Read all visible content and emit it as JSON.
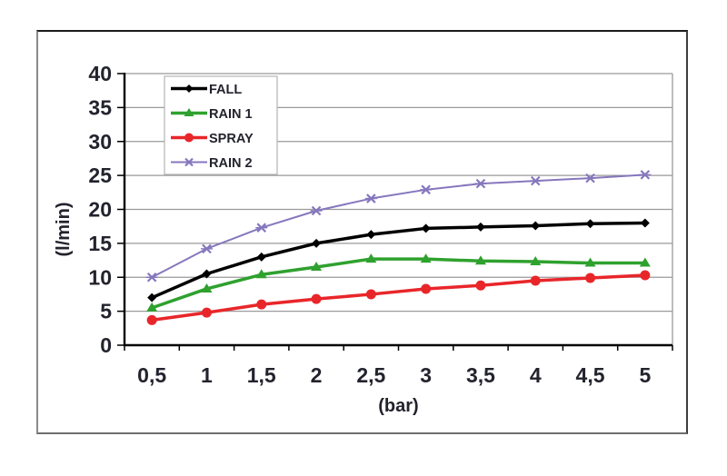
{
  "figure": {
    "background": "#ffffff",
    "border_color": "#3c3c3c"
  },
  "chart_data": {
    "type": "line",
    "xlabel": "(bar)",
    "ylabel": "(l/min)",
    "x_values": [
      0.5,
      1,
      1.5,
      2,
      2.5,
      3,
      3.5,
      4,
      4.5,
      5
    ],
    "x_tick_labels": [
      "0,5",
      "1",
      "1,5",
      "2",
      "2,5",
      "3",
      "3,5",
      "4",
      "4,5",
      "5"
    ],
    "y_tick_labels": [
      "0",
      "5",
      "10",
      "15",
      "20",
      "25",
      "30",
      "35",
      "40"
    ],
    "ylim": [
      0,
      40
    ],
    "y_tick_step": 5,
    "grid": true,
    "grid_color": "#9a9a9a",
    "axis_color": "#000000",
    "text_color": "#23232e",
    "legend_position": "top-left-inside",
    "legend_border_color": "#b3b3b3",
    "series": [
      {
        "name": "FALL",
        "color": "#000000",
        "marker": "diamond",
        "line_width": 3.5,
        "values": [
          7.0,
          10.5,
          13.0,
          15.0,
          16.3,
          17.2,
          17.4,
          17.6,
          17.9,
          18.0
        ]
      },
      {
        "name": "RAIN 1",
        "color": "#2fa12e",
        "marker": "triangle",
        "line_width": 3.5,
        "values": [
          5.5,
          8.3,
          10.4,
          11.5,
          12.7,
          12.7,
          12.4,
          12.3,
          12.1,
          12.1
        ]
      },
      {
        "name": "SPRAY",
        "color": "#e8262a",
        "marker": "circle",
        "line_width": 3.5,
        "values": [
          3.7,
          4.8,
          6.0,
          6.8,
          7.5,
          8.3,
          8.8,
          9.5,
          9.9,
          10.3
        ]
      },
      {
        "name": "RAIN 2",
        "color": "#8677bd",
        "marker": "x",
        "line_width": 2,
        "values": [
          10.0,
          14.2,
          17.3,
          19.8,
          21.6,
          22.9,
          23.8,
          24.2,
          24.6,
          25.1
        ]
      }
    ]
  }
}
